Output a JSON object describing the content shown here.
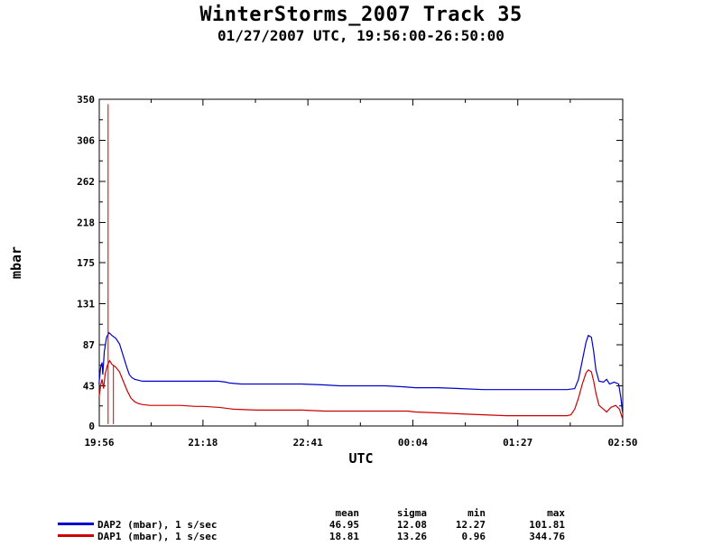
{
  "title": "WinterStorms_2007 Track 35",
  "subtitle": "01/27/2007 UTC, 19:56:00-26:50:00",
  "chart_data": {
    "type": "line",
    "ylabel": "mbar",
    "xlabel": "UTC",
    "ylim": [
      0,
      350
    ],
    "xlim_hours": [
      19.9333,
      26.8333
    ],
    "y_ticks": [
      0,
      43,
      87,
      131,
      175,
      218,
      262,
      306,
      350
    ],
    "x_ticks": [
      {
        "h": 19.9333,
        "label": "19:56"
      },
      {
        "h": 21.3,
        "label": "21:18"
      },
      {
        "h": 22.6833,
        "label": "22:41"
      },
      {
        "h": 24.0667,
        "label": "00:04"
      },
      {
        "h": 25.45,
        "label": "01:27"
      },
      {
        "h": 26.8333,
        "label": "02:50"
      }
    ],
    "series": [
      {
        "name": "DAP2 (mbar), 1 s/sec",
        "color": "#0000cc",
        "points": [
          [
            19.93,
            45
          ],
          [
            19.95,
            62
          ],
          [
            19.97,
            68
          ],
          [
            19.98,
            55
          ],
          [
            20.0,
            80
          ],
          [
            20.03,
            95
          ],
          [
            20.06,
            100
          ],
          [
            20.1,
            97
          ],
          [
            20.15,
            94
          ],
          [
            20.2,
            88
          ],
          [
            20.25,
            75
          ],
          [
            20.3,
            62
          ],
          [
            20.33,
            55
          ],
          [
            20.36,
            52
          ],
          [
            20.4,
            50
          ],
          [
            20.45,
            49
          ],
          [
            20.5,
            48
          ],
          [
            20.6,
            48
          ],
          [
            20.8,
            48
          ],
          [
            21.0,
            48
          ],
          [
            21.2,
            48
          ],
          [
            21.3,
            48
          ],
          [
            21.5,
            48
          ],
          [
            21.6,
            47
          ],
          [
            21.65,
            46
          ],
          [
            21.8,
            45
          ],
          [
            22.0,
            45
          ],
          [
            22.3,
            45
          ],
          [
            22.6,
            45
          ],
          [
            22.9,
            44
          ],
          [
            23.1,
            43
          ],
          [
            23.4,
            43
          ],
          [
            23.7,
            43
          ],
          [
            23.95,
            42
          ],
          [
            24.1,
            41
          ],
          [
            24.4,
            41
          ],
          [
            24.7,
            40
          ],
          [
            25.0,
            39
          ],
          [
            25.3,
            39
          ],
          [
            25.6,
            39
          ],
          [
            25.9,
            39
          ],
          [
            26.1,
            39
          ],
          [
            26.2,
            40
          ],
          [
            26.25,
            50
          ],
          [
            26.3,
            70
          ],
          [
            26.35,
            90
          ],
          [
            26.38,
            97
          ],
          [
            26.42,
            95
          ],
          [
            26.45,
            80
          ],
          [
            26.48,
            60
          ],
          [
            26.52,
            48
          ],
          [
            26.58,
            47
          ],
          [
            26.62,
            50
          ],
          [
            26.66,
            45
          ],
          [
            26.72,
            47
          ],
          [
            26.78,
            45
          ],
          [
            26.81,
            30
          ],
          [
            26.83,
            15
          ]
        ]
      },
      {
        "name": "DAP1 (mbar), 1 s/sec",
        "color": "#cc0000",
        "points": [
          [
            19.93,
            30
          ],
          [
            19.95,
            43
          ],
          [
            19.97,
            50
          ],
          [
            19.99,
            40
          ],
          [
            20.01,
            55
          ],
          [
            20.04,
            65
          ],
          [
            20.07,
            70
          ],
          [
            20.1,
            66
          ],
          [
            20.15,
            63
          ],
          [
            20.2,
            58
          ],
          [
            20.25,
            48
          ],
          [
            20.3,
            38
          ],
          [
            20.35,
            30
          ],
          [
            20.4,
            26
          ],
          [
            20.45,
            24
          ],
          [
            20.5,
            23
          ],
          [
            20.6,
            22
          ],
          [
            20.8,
            22
          ],
          [
            21.0,
            22
          ],
          [
            21.2,
            21
          ],
          [
            21.3,
            21
          ],
          [
            21.5,
            20
          ],
          [
            21.6,
            19
          ],
          [
            21.7,
            18
          ],
          [
            22.0,
            17
          ],
          [
            22.3,
            17
          ],
          [
            22.6,
            17
          ],
          [
            22.9,
            16
          ],
          [
            23.2,
            16
          ],
          [
            23.5,
            16
          ],
          [
            23.8,
            16
          ],
          [
            24.0,
            16
          ],
          [
            24.1,
            15
          ],
          [
            24.4,
            14
          ],
          [
            24.7,
            13
          ],
          [
            25.0,
            12
          ],
          [
            25.3,
            11
          ],
          [
            25.6,
            11
          ],
          [
            25.9,
            11
          ],
          [
            26.1,
            11
          ],
          [
            26.15,
            12
          ],
          [
            26.2,
            18
          ],
          [
            26.25,
            30
          ],
          [
            26.3,
            45
          ],
          [
            26.35,
            57
          ],
          [
            26.38,
            60
          ],
          [
            26.42,
            58
          ],
          [
            26.45,
            48
          ],
          [
            26.48,
            35
          ],
          [
            26.52,
            22
          ],
          [
            26.58,
            18
          ],
          [
            26.62,
            15
          ],
          [
            26.68,
            20
          ],
          [
            26.74,
            22
          ],
          [
            26.79,
            18
          ],
          [
            26.83,
            8
          ]
        ],
        "spikes": [
          {
            "h": 20.05,
            "from": 2,
            "to": 344.76
          },
          {
            "h": 20.12,
            "from": 2,
            "to": 65
          }
        ]
      }
    ]
  },
  "stats": {
    "headers": [
      "mean",
      "sigma",
      "min",
      "max"
    ],
    "rows": [
      {
        "label": "DAP2 (mbar), 1 s/sec",
        "color": "#0000cc",
        "values": [
          "46.95",
          "12.08",
          "12.27",
          "101.81"
        ]
      },
      {
        "label": "DAP1 (mbar), 1 s/sec",
        "color": "#cc0000",
        "values": [
          "18.81",
          "13.26",
          "0.96",
          "344.76"
        ]
      }
    ]
  }
}
